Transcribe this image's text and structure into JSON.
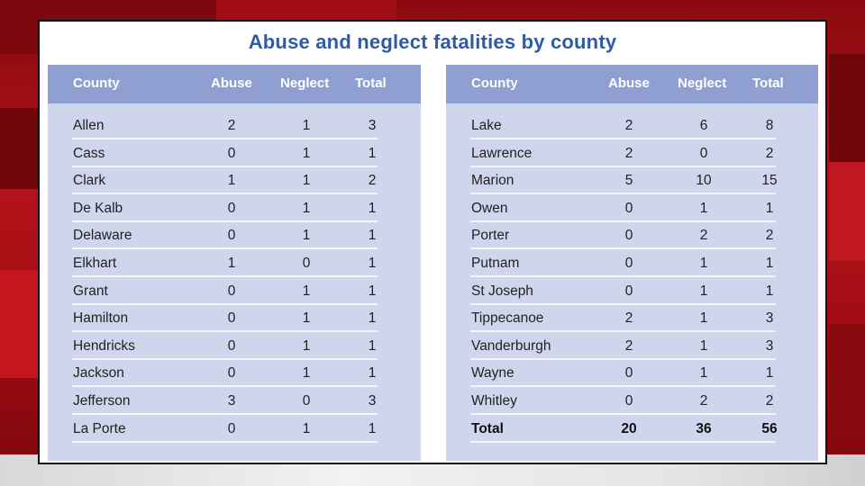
{
  "title": "Abuse and neglect fatalities by county",
  "colors": {
    "title": "#2e5aa8",
    "header_bg": "#8f9fd1",
    "panel_bg": "#cfd5ec",
    "background": "#b3121a"
  },
  "chart_data": {
    "type": "table",
    "title": "Abuse and neglect fatalities by county",
    "columns": [
      "County",
      "Abuse",
      "Neglect",
      "Total"
    ],
    "left_table": {
      "rows": [
        [
          "Allen",
          "2",
          "1",
          "3"
        ],
        [
          "Cass",
          "0",
          "1",
          "1"
        ],
        [
          "Clark",
          "1",
          "1",
          "2"
        ],
        [
          "De Kalb",
          "0",
          "1",
          "1"
        ],
        [
          "Delaware",
          "0",
          "1",
          "1"
        ],
        [
          "Elkhart",
          "1",
          "0",
          "1"
        ],
        [
          "Grant",
          "0",
          "1",
          "1"
        ],
        [
          "Hamilton",
          "0",
          "1",
          "1"
        ],
        [
          "Hendricks",
          "0",
          "1",
          "1"
        ],
        [
          "Jackson",
          "0",
          "1",
          "1"
        ],
        [
          "Jefferson",
          "3",
          "0",
          "3"
        ],
        [
          "La Porte",
          "0",
          "1",
          "1"
        ]
      ]
    },
    "right_table": {
      "rows": [
        [
          "Lake",
          "2",
          "6",
          "8"
        ],
        [
          "Lawrence",
          "2",
          "0",
          "2"
        ],
        [
          "Marion",
          "5",
          "10",
          "15"
        ],
        [
          "Owen",
          "0",
          "1",
          "1"
        ],
        [
          "Porter",
          "0",
          "2",
          "2"
        ],
        [
          "Putnam",
          "0",
          "1",
          "1"
        ],
        [
          "St Joseph",
          "0",
          "1",
          "1"
        ],
        [
          "Tippecanoe",
          "2",
          "1",
          "3"
        ],
        [
          "Vanderburgh",
          "2",
          "1",
          "3"
        ],
        [
          "Wayne",
          "0",
          "1",
          "1"
        ],
        [
          "Whitley",
          "0",
          "2",
          "2"
        ]
      ],
      "total_row": [
        "Total",
        "20",
        "36",
        "56"
      ]
    }
  }
}
